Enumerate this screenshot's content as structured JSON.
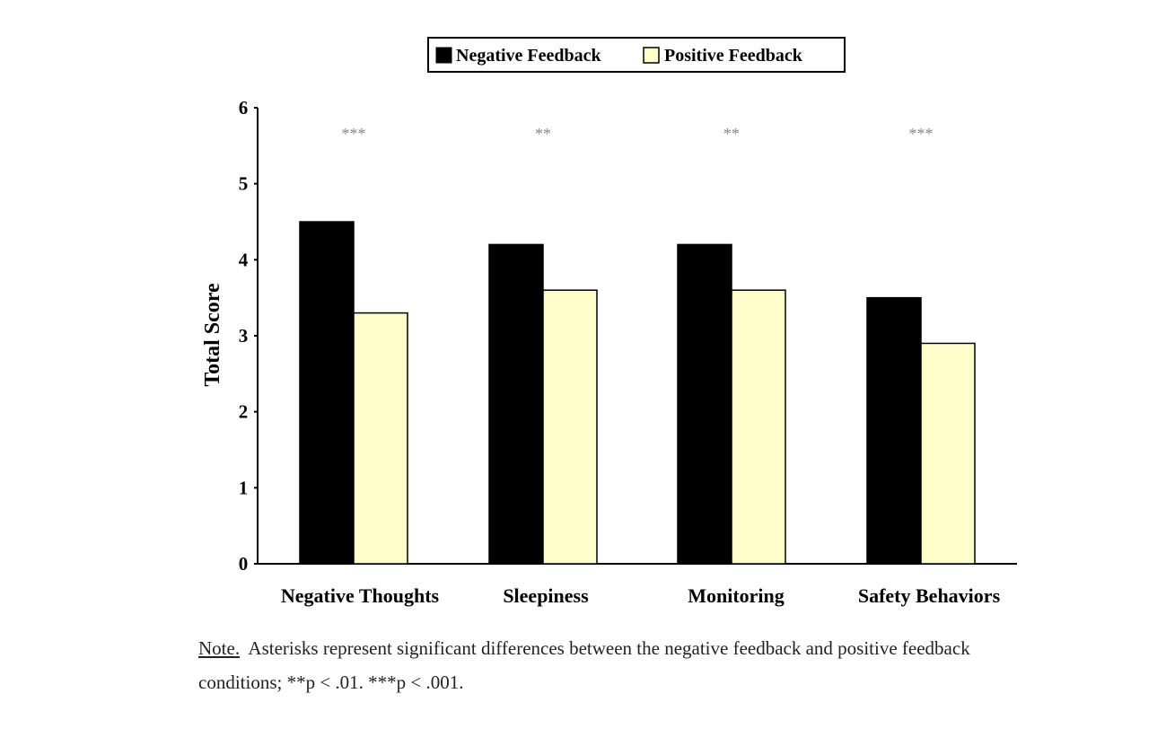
{
  "chart_data": {
    "type": "bar",
    "ylabel": "Total Score",
    "xlabel": "",
    "ylim": [
      0,
      6
    ],
    "yticks": [
      "0",
      "1",
      "2",
      "3",
      "4",
      "5",
      "6"
    ],
    "categories": [
      "Negative Thoughts",
      "Sleepiness",
      "Monitoring",
      "Safety Behaviors"
    ],
    "series": [
      {
        "name": "Negative Feedback",
        "color": "#000000",
        "values": [
          4.5,
          4.2,
          4.2,
          3.5
        ]
      },
      {
        "name": "Positive Feedback",
        "color": "#ffffcc",
        "values": [
          3.3,
          3.6,
          3.6,
          2.9
        ]
      }
    ],
    "significance": [
      "***",
      "**",
      "**",
      "***"
    ],
    "legend_position": "top-center",
    "grid": false
  },
  "note": {
    "label": "Note.",
    "text": "Asterisks represent significant differences between the negative feedback and positive feedback conditions; **p < .01. ***p < .001."
  }
}
